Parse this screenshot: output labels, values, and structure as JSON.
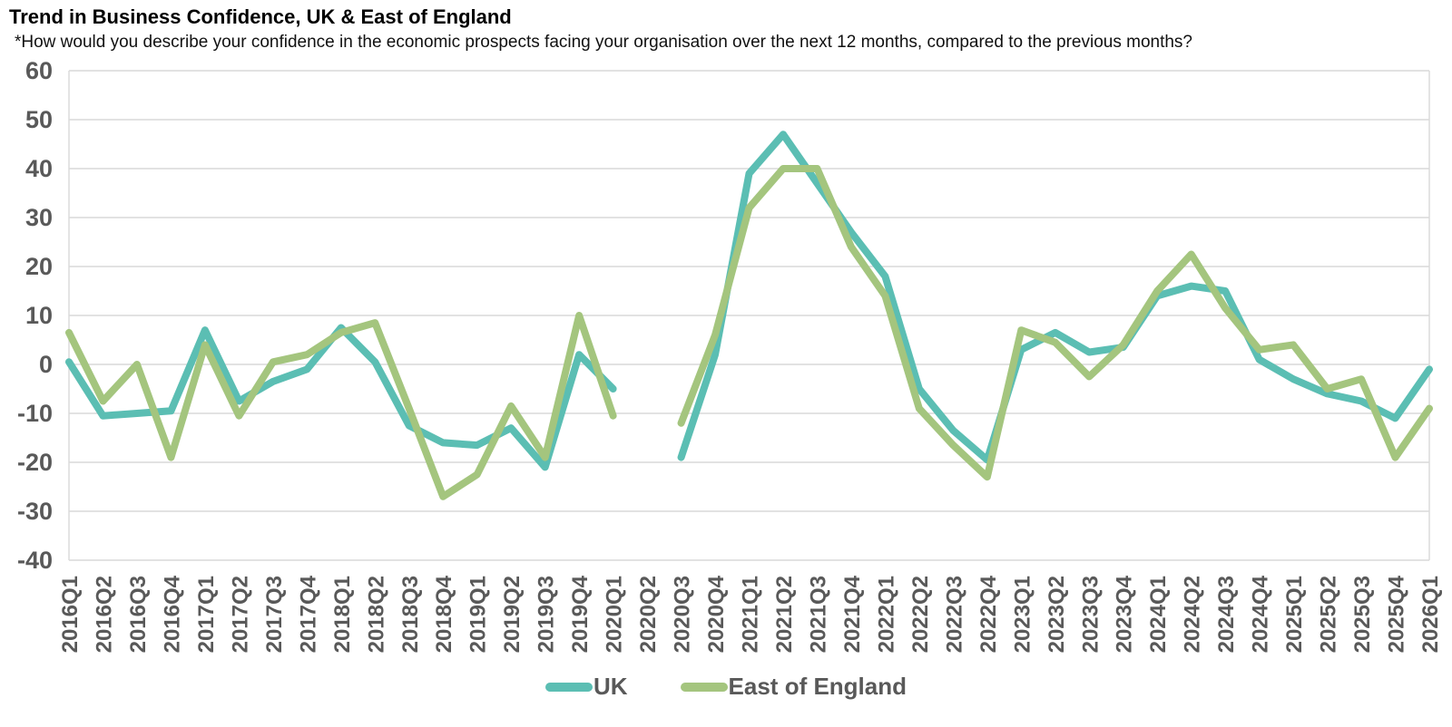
{
  "title": "Trend in Business Confidence, UK & East of England",
  "subtitle": "*How would you describe your confidence in the economic prospects facing your organisation over the next 12 months, compared to the previous months?",
  "chart_data": {
    "type": "line",
    "title": "Trend in Business Confidence, UK & East of England",
    "categories": [
      "2016Q1",
      "2016Q2",
      "2016Q3",
      "2016Q4",
      "2017Q1",
      "2017Q2",
      "2017Q3",
      "2017Q4",
      "2018Q1",
      "2018Q2",
      "2018Q3",
      "2018Q4",
      "2019Q1",
      "2019Q2",
      "2019Q3",
      "2019Q4",
      "2020Q1",
      "2020Q2",
      "2020Q3",
      "2020Q4",
      "2021Q1",
      "2021Q2",
      "2021Q3",
      "2021Q4",
      "2022Q1",
      "2022Q2",
      "2022Q3",
      "2022Q4",
      "2023Q1",
      "2023Q2",
      "2023Q3",
      "2023Q4",
      "2024Q1",
      "2024Q2",
      "2024Q3",
      "2024Q4",
      "2025Q1",
      "2025Q2",
      "2025Q3",
      "2025Q4",
      "2026Q1"
    ],
    "series": [
      {
        "name": "UK",
        "color": "#5BBEB3",
        "values": [
          0.5,
          -10.5,
          -10,
          -9.5,
          7,
          -7.5,
          -3.5,
          -1,
          7.5,
          0.5,
          -12.5,
          -16,
          -16.5,
          -13,
          -21,
          2,
          -5,
          null,
          -19,
          2,
          39,
          47,
          37,
          27,
          18,
          -5,
          -13.5,
          -19.5,
          3,
          6.5,
          2.5,
          3.5,
          14,
          16,
          15,
          1,
          -3,
          -6,
          -7.5,
          -11,
          -1
        ]
      },
      {
        "name": "East of England",
        "color": "#A4C57E",
        "values": [
          6.5,
          -7.5,
          0,
          -19,
          4,
          -10.5,
          0.5,
          2,
          6.5,
          8.5,
          -9,
          -27,
          -22.5,
          -8.5,
          -19,
          10,
          -10.5,
          null,
          -12,
          6,
          32,
          40,
          40,
          24,
          14,
          -9,
          -16.5,
          -23,
          7,
          4.5,
          -2.5,
          4,
          15,
          22.5,
          11.5,
          3,
          4,
          -5,
          -3,
          -19,
          -9
        ]
      }
    ],
    "xlabel": "",
    "ylabel": "",
    "ylim": [
      -40,
      60
    ],
    "ytick_step": 10,
    "grid": true,
    "legend_position": "bottom"
  },
  "legend": {
    "items": [
      {
        "label": "UK",
        "color": "#5BBEB3"
      },
      {
        "label": "East of England",
        "color": "#A4C57E"
      }
    ]
  },
  "style": {
    "axis_text_color": "#595959",
    "grid_color": "#D9D9D9"
  }
}
